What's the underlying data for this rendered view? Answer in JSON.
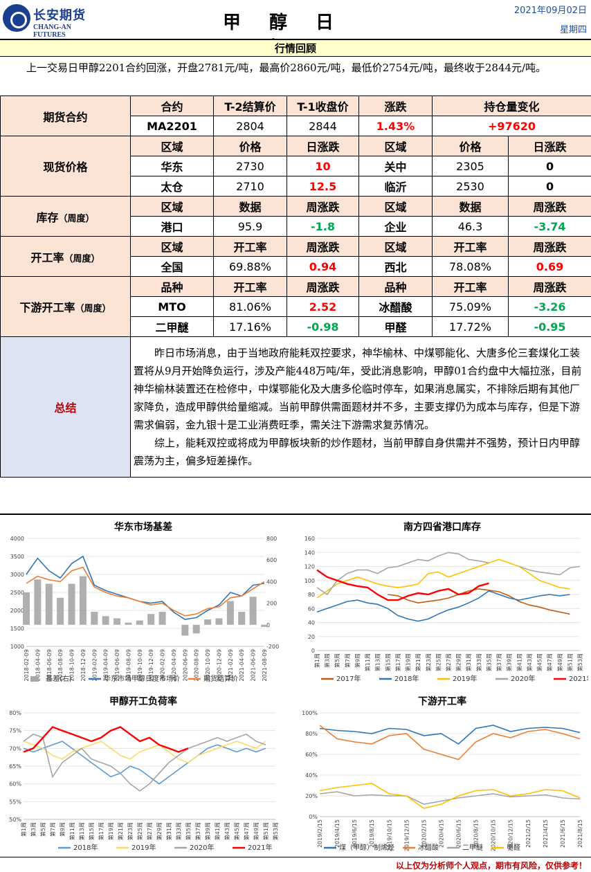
{
  "header": {
    "logo_cn": "长安期货",
    "logo_en": "CHANG-AN FUTURES",
    "title": "甲 醇 日 报",
    "date": "2021年09月02日",
    "weekday": "星期四"
  },
  "review": {
    "heading": "行情回顾",
    "text": "上一交易日甲醇2201合约回涨，开盘2781元/吨，最高价2860元/吨，最低价2754元/吨，最终收于2844元/吨。"
  },
  "futures": {
    "label": "期货合约",
    "headers": [
      "合约",
      "T-2结算价",
      "T-1收盘价",
      "涨跌",
      "持仓量变化"
    ],
    "row": [
      "MA2201",
      "2804",
      "2844",
      "1.43%",
      "+97620"
    ]
  },
  "spot": {
    "label": "现货价格",
    "headers": [
      "区域",
      "价格",
      "日涨跌",
      "区域",
      "价格",
      "日涨跌"
    ],
    "rows": [
      [
        "华东",
        "2730",
        "10",
        "关中",
        "2305",
        "0"
      ],
      [
        "太仓",
        "2710",
        "12.5",
        "临沂",
        "2530",
        "0"
      ]
    ]
  },
  "inventory": {
    "label": "库存",
    "sub": "（周度）",
    "headers": [
      "区域",
      "数据",
      "周涨跌",
      "区域",
      "数据",
      "周涨跌"
    ],
    "row": [
      "港口",
      "95.9",
      "-1.8",
      "企业",
      "46.3",
      "-3.74"
    ]
  },
  "operating": {
    "label": "开工率",
    "sub": "（周度）",
    "headers": [
      "区域",
      "开工率",
      "周涨跌",
      "区域",
      "开工率",
      "周涨跌"
    ],
    "row": [
      "全国",
      "69.88%",
      "0.94",
      "西北",
      "78.08%",
      "0.69"
    ]
  },
  "downstream": {
    "label": "下游开工率",
    "sub": "（周度）",
    "headers": [
      "品种",
      "开工率",
      "周涨跌",
      "品种",
      "开工率",
      "周涨跌"
    ],
    "rows": [
      [
        "MTO",
        "81.06%",
        "2.52",
        "冰醋酸",
        "75.09%",
        "-3.26"
      ],
      [
        "二甲醚",
        "17.16%",
        "-0.98",
        "甲醛",
        "17.72%",
        "-0.95"
      ]
    ]
  },
  "summary": {
    "label": "总结",
    "p1": "昨日市场消息，由于当地政府能耗双控要求，神华榆林、中煤鄂能化、大唐多伦三套煤化工装置将从9月开始降负运行，涉及产能448万吨/年，受此消息影响，甲醇01合约盘中大幅拉涨，目前神华榆林装置还在检修中，中煤鄂能化及大唐多伦临时停车，如果消息属实，不排除后期有其他厂家降负，造成甲醇供给量缩减。当前甲醇供需面题材并不多，主要支撑仍为成本与库存，但是下游需求偏弱，金九银十是工业消费旺季，需关注下游需求复苏情况。",
    "p2": "综上，能耗双控或将成为甲醇板块新的炒作题材，当前甲醇自身供需并不强势，预计日内甲醇震荡为主，偏多短差操作。"
  },
  "footer": {
    "disclaimer": "以上仅为分析师个人观点，期市有风险，仅供参考！"
  },
  "colors": {
    "up": "#ff0000",
    "down": "#00a651",
    "section": "#fbe4d5",
    "summary": "#dde3f3",
    "brand": "#1b3f8f"
  },
  "chart_data": [
    {
      "type": "line",
      "title": "华东市场基差",
      "ylim": [
        1000,
        4000
      ],
      "y2lim": [
        -200,
        800
      ],
      "yticks": [
        "4000",
        "3500",
        "3000",
        "2500",
        "2000",
        "1500",
        "1000"
      ],
      "y2ticks": [
        "800",
        "600",
        "400",
        "200",
        "0",
        "-200"
      ],
      "categories": [
        "2018-02-09",
        "2018-04-09",
        "2018-06-09",
        "2018-08-09",
        "2018-10-09",
        "2018-12-09",
        "2019-02-09",
        "2019-04-09",
        "2019-06-09",
        "2019-08-09",
        "2019-10-09",
        "2019-12-09",
        "2020-02-09",
        "2020-04-09",
        "2020-06-09",
        "2020-08-09",
        "2020-10-09",
        "2020-12-09",
        "2021-02-09",
        "2021-04-09",
        "2021-06-09",
        "2021-08-09"
      ],
      "series": [
        {
          "name": "基差(右)",
          "axis": "right",
          "kind": "area",
          "color": "#a6a6a6",
          "values": [
            300,
            420,
            380,
            250,
            380,
            450,
            120,
            80,
            60,
            20,
            40,
            100,
            120,
            0,
            -100,
            -80,
            50,
            60,
            220,
            120,
            260,
            -20
          ]
        },
        {
          "name": "华东市场甲醇日度市场价",
          "kind": "line",
          "color": "#2e75b6",
          "values": [
            3000,
            3450,
            3100,
            2900,
            3300,
            3500,
            2700,
            2550,
            2450,
            2350,
            2250,
            2200,
            2250,
            1950,
            1750,
            1800,
            2000,
            2150,
            2500,
            2400,
            2700,
            2750
          ]
        },
        {
          "name": "期货结算价",
          "kind": "line",
          "color": "#ed7d31",
          "values": [
            2750,
            2950,
            2850,
            2800,
            3100,
            3200,
            2650,
            2500,
            2400,
            2350,
            2250,
            2150,
            2200,
            2000,
            1850,
            1900,
            2050,
            2100,
            2350,
            2400,
            2600,
            2800
          ]
        }
      ]
    },
    {
      "type": "line",
      "title": "南方四省港口库存",
      "ylim": [
        0,
        160
      ],
      "yticks": [
        "160",
        "140",
        "120",
        "100",
        "80",
        "60",
        "40",
        "20",
        "0"
      ],
      "categories": [
        "第1周",
        "第3周",
        "第5周",
        "第7周",
        "第9周",
        "第11周",
        "第13周",
        "第15周",
        "第17周",
        "第19周",
        "第21周",
        "第23周",
        "第25周",
        "第27周",
        "第29周",
        "第31周",
        "第33周",
        "第35周",
        "第37周",
        "第39周",
        "第41周",
        "第43周",
        "第45周",
        "第47周",
        "第49周",
        "第51周",
        "第53周"
      ],
      "series": [
        {
          "name": "2017年",
          "color": "#c55a11",
          "values": [
            null,
            null,
            null,
            null,
            null,
            null,
            null,
            80,
            78,
            72,
            68,
            70,
            72,
            75,
            80,
            85,
            88,
            86,
            84,
            78,
            70,
            65,
            62,
            58,
            55,
            52,
            null
          ]
        },
        {
          "name": "2018年",
          "color": "#2e75b6",
          "values": [
            55,
            60,
            65,
            70,
            72,
            68,
            66,
            60,
            50,
            45,
            42,
            45,
            52,
            58,
            62,
            68,
            75,
            85,
            80,
            75,
            72,
            75,
            78,
            80,
            78,
            80,
            null
          ]
        },
        {
          "name": "2019年",
          "color": "#ffc000",
          "values": [
            75,
            85,
            95,
            100,
            105,
            100,
            95,
            92,
            90,
            92,
            95,
            110,
            112,
            105,
            110,
            115,
            120,
            125,
            130,
            125,
            120,
            110,
            100,
            95,
            90,
            88,
            null
          ]
        },
        {
          "name": "2020年",
          "color": "#a5a5a5",
          "values": [
            90,
            80,
            100,
            110,
            115,
            115,
            110,
            118,
            120,
            125,
            130,
            128,
            135,
            140,
            138,
            130,
            128,
            125,
            null,
            null,
            120,
            115,
            112,
            110,
            108,
            118,
            120
          ]
        },
        {
          "name": "2021年",
          "color": "#ff0000",
          "values": [
            115,
            105,
            100,
            95,
            92,
            90,
            80,
            72,
            72,
            78,
            82,
            80,
            85,
            88,
            80,
            82,
            92,
            96,
            null,
            null,
            null,
            null,
            null,
            null,
            null,
            null,
            null
          ]
        }
      ]
    },
    {
      "type": "line",
      "title": "甲醇开工负荷率",
      "ylim": [
        50,
        80
      ],
      "yticks": [
        "80%",
        "75%",
        "70%",
        "65%",
        "60%",
        "55%",
        "50%"
      ],
      "categories": [
        "第1周",
        "第3周",
        "第5周",
        "第7周",
        "第9周",
        "第11周",
        "第13周",
        "第15周",
        "第17周",
        "第19周",
        "第21周",
        "第23周",
        "第25周",
        "第27周",
        "第29周",
        "第31周",
        "第33周",
        "第35周",
        "第37周",
        "第39周",
        "第41周",
        "第43周",
        "第45周",
        "第47周",
        "第49周",
        "第51周",
        "第53周"
      ],
      "series": [
        {
          "name": "2018年",
          "color": "#5b9bd5",
          "values": [
            70,
            69,
            70,
            71,
            72,
            70,
            68,
            66,
            64,
            62,
            63,
            65,
            64,
            62,
            60,
            62,
            64,
            66,
            68,
            70,
            71,
            70,
            69,
            70,
            69,
            70,
            null
          ]
        },
        {
          "name": "2019年",
          "color": "#ffd966",
          "values": [
            72,
            71,
            70,
            68,
            67,
            69,
            70,
            71,
            72,
            70,
            68,
            67,
            69,
            70,
            71,
            69,
            67,
            66,
            68,
            69,
            70,
            71,
            72,
            71,
            70,
            72,
            null
          ]
        },
        {
          "name": "2020年",
          "color": "#a5a5a5",
          "values": [
            72,
            74,
            73,
            62,
            66,
            68,
            70,
            67,
            66,
            65,
            63,
            60,
            58,
            60,
            63,
            66,
            68,
            70,
            71,
            72,
            73,
            72,
            73,
            74,
            72,
            71,
            null
          ]
        },
        {
          "name": "2021年",
          "color": "#ff0000",
          "values": [
            69,
            70,
            73,
            76,
            75,
            74,
            73,
            72,
            73,
            75,
            76,
            74,
            72,
            73,
            71,
            70,
            69,
            70,
            null,
            null,
            null,
            null,
            null,
            null,
            null,
            null,
            null
          ]
        }
      ]
    },
    {
      "type": "line",
      "title": "下游开工率",
      "ylim": [
        0,
        100
      ],
      "yticks": [
        "100%",
        "80%",
        "60%",
        "40%",
        "20%",
        "0%"
      ],
      "categories": [
        "2019/2/15",
        "2019/4/15",
        "2019/6/15",
        "2019/8/15",
        "2019/10/15",
        "2019/12/15",
        "2020/2/15",
        "2020/4/15",
        "2020/6/15",
        "2020/8/15",
        "2020/10/15",
        "2020/12/15",
        "2021/2/15",
        "2021/4/15",
        "2021/6/15",
        "2021/8/15"
      ],
      "series": [
        {
          "name": "煤（甲醇）制烯烃",
          "color": "#2e75b6",
          "values": [
            85,
            83,
            82,
            80,
            85,
            84,
            78,
            80,
            70,
            85,
            88,
            82,
            85,
            86,
            85,
            81
          ]
        },
        {
          "name": "冰醋酸",
          "color": "#ed7d31",
          "values": [
            88,
            75,
            72,
            70,
            78,
            80,
            65,
            60,
            55,
            72,
            80,
            76,
            82,
            84,
            80,
            75
          ]
        },
        {
          "name": "二甲醚",
          "color": "#a5a5a5",
          "values": [
            22,
            24,
            20,
            21,
            20,
            20,
            12,
            15,
            18,
            20,
            22,
            19,
            20,
            21,
            18,
            17
          ]
        },
        {
          "name": "甲醛",
          "color": "#ffc000",
          "values": [
            25,
            28,
            30,
            32,
            22,
            20,
            8,
            12,
            20,
            25,
            26,
            20,
            22,
            26,
            25,
            18
          ]
        }
      ]
    }
  ]
}
